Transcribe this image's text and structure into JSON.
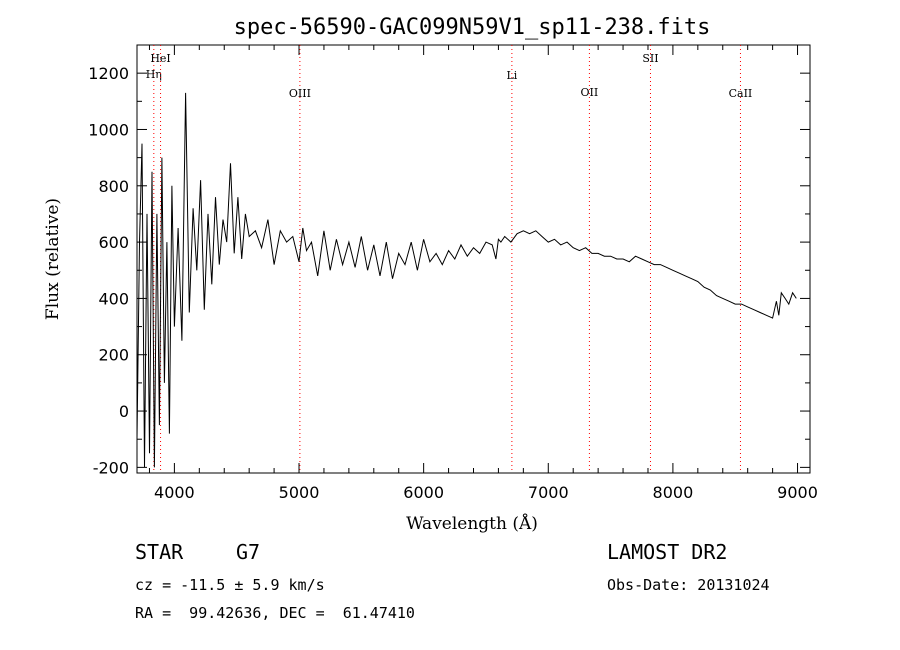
{
  "chart_data": {
    "type": "line",
    "title": "spec-56590-GAC099N59V1_sp11-238.fits",
    "xlabel": "Wavelength (Å)",
    "ylabel": "Flux (relative)",
    "xlim": [
      3700,
      9100
    ],
    "ylim": [
      -220,
      1300
    ],
    "xticks": [
      4000,
      5000,
      6000,
      7000,
      8000,
      9000
    ],
    "yticks": [
      -200,
      0,
      200,
      400,
      600,
      800,
      1000,
      1200
    ],
    "grid": false,
    "line_color": "#000000",
    "marker_color": "#ff0000",
    "spectral_lines": [
      {
        "label": "Hη",
        "wavelength": 3835
      },
      {
        "label": "HeI",
        "wavelength": 3889
      },
      {
        "label": "OIII",
        "wavelength": 5007
      },
      {
        "label": "Li",
        "wavelength": 6708
      },
      {
        "label": "OII",
        "wavelength": 7330
      },
      {
        "label": "SII",
        "wavelength": 7820
      },
      {
        "label": "CaII",
        "wavelength": 8542
      }
    ],
    "x": [
      3700,
      3720,
      3740,
      3760,
      3780,
      3800,
      3820,
      3840,
      3860,
      3880,
      3900,
      3920,
      3940,
      3960,
      3980,
      4000,
      4030,
      4060,
      4090,
      4120,
      4150,
      4180,
      4210,
      4240,
      4270,
      4300,
      4330,
      4360,
      4390,
      4420,
      4450,
      4480,
      4510,
      4540,
      4570,
      4600,
      4650,
      4700,
      4750,
      4800,
      4850,
      4900,
      4950,
      5000,
      5030,
      5060,
      5100,
      5150,
      5200,
      5250,
      5300,
      5350,
      5400,
      5450,
      5500,
      5550,
      5600,
      5650,
      5700,
      5750,
      5800,
      5850,
      5900,
      5950,
      6000,
      6050,
      6100,
      6150,
      6200,
      6250,
      6300,
      6350,
      6400,
      6450,
      6500,
      6550,
      6580,
      6600,
      6620,
      6650,
      6700,
      6750,
      6800,
      6850,
      6900,
      6950,
      7000,
      7050,
      7100,
      7150,
      7200,
      7250,
      7300,
      7350,
      7400,
      7450,
      7500,
      7550,
      7600,
      7650,
      7700,
      7750,
      7800,
      7850,
      7900,
      7950,
      8000,
      8050,
      8100,
      8150,
      8200,
      8250,
      8300,
      8350,
      8400,
      8450,
      8500,
      8550,
      8600,
      8650,
      8700,
      8750,
      8800,
      8830,
      8850,
      8870,
      8900,
      8930,
      8960,
      8990
    ],
    "y": [
      -100,
      600,
      950,
      -200,
      700,
      -150,
      850,
      -200,
      700,
      -50,
      900,
      100,
      600,
      -80,
      800,
      300,
      650,
      250,
      1130,
      350,
      720,
      500,
      820,
      360,
      700,
      450,
      760,
      520,
      680,
      600,
      880,
      560,
      760,
      540,
      700,
      620,
      640,
      580,
      680,
      520,
      640,
      600,
      620,
      530,
      650,
      570,
      600,
      480,
      640,
      500,
      610,
      520,
      600,
      510,
      620,
      500,
      590,
      480,
      600,
      470,
      560,
      520,
      600,
      500,
      610,
      530,
      560,
      520,
      570,
      540,
      590,
      550,
      580,
      560,
      600,
      590,
      540,
      610,
      600,
      620,
      600,
      630,
      640,
      630,
      640,
      620,
      600,
      610,
      590,
      600,
      580,
      570,
      580,
      560,
      560,
      550,
      550,
      540,
      540,
      530,
      550,
      540,
      530,
      520,
      520,
      510,
      500,
      490,
      480,
      470,
      460,
      440,
      430,
      410,
      400,
      390,
      380,
      380,
      370,
      360,
      350,
      340,
      330,
      390,
      340,
      420,
      400,
      380,
      420,
      400
    ]
  },
  "info": {
    "class_label": "STAR",
    "subclass": "G7",
    "survey": "LAMOST DR2",
    "cz": "cz = -11.5 ± 5.9 km/s",
    "obs_date": "Obs-Date: 20131024",
    "coords": "RA =  99.42636, DEC =  61.47410"
  }
}
